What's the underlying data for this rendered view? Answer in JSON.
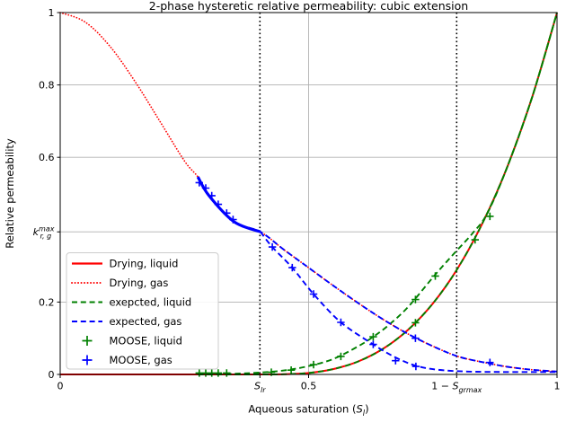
{
  "title": "2-phase hysteretic relative permeability: cubic extension",
  "axes": {
    "ylabel": "Relative permeability",
    "xlabel_plain": "Aqueous saturation (S_l)",
    "xlabel_parts": [
      {
        "t": "Aqueous saturation ("
      },
      {
        "t": "S",
        "i": 1
      },
      {
        "t": "l",
        "i": 1,
        "sub": 1
      },
      {
        "t": ")"
      }
    ],
    "xlim": [
      0,
      1
    ],
    "ylim": [
      0,
      1
    ],
    "xticks": [
      {
        "v": 0,
        "parts": [
          {
            "t": "0"
          }
        ]
      },
      {
        "v": 0.402,
        "parts": [
          {
            "t": "S",
            "i": 1
          },
          {
            "t": "lr",
            "i": 1,
            "sub": 1
          }
        ]
      },
      {
        "v": 0.5,
        "parts": [
          {
            "t": "0.5"
          }
        ]
      },
      {
        "v": 0.798,
        "parts": [
          {
            "t": "1 − "
          },
          {
            "t": "S",
            "i": 1
          },
          {
            "t": "grmax",
            "i": 1,
            "sub": 1
          }
        ]
      },
      {
        "v": 1,
        "parts": [
          {
            "t": "1"
          }
        ]
      }
    ],
    "yticks": [
      {
        "v": 0,
        "parts": [
          {
            "t": "0"
          }
        ]
      },
      {
        "v": 0.2,
        "parts": [
          {
            "t": "0.2"
          }
        ]
      },
      {
        "v": 0.394,
        "parts": [
          {
            "t": "k",
            "i": 1
          },
          {
            "t": "max",
            "i": 1,
            "sup": 1
          },
          {
            "t": "r, g",
            "i": 1,
            "sub": 1,
            "back": -16
          }
        ]
      },
      {
        "v": 0.6,
        "parts": [
          {
            "t": "0.6"
          }
        ]
      },
      {
        "v": 0.8,
        "parts": [
          {
            "t": "0.8"
          }
        ]
      },
      {
        "v": 1,
        "parts": [
          {
            "t": "1"
          }
        ]
      }
    ],
    "grid_x": [
      0.5
    ],
    "grid_y": [
      0.2,
      0.394,
      0.6,
      0.8
    ],
    "dotted_vlines": [
      0.402,
      0.798
    ]
  },
  "legend": {
    "entries": [
      {
        "label": "Drying, liquid",
        "sample": {
          "kind": "line",
          "color": "#ff0000",
          "style": "solid"
        }
      },
      {
        "label": "Drying, gas",
        "sample": {
          "kind": "line",
          "color": "#ff0000",
          "style": "dotted"
        }
      },
      {
        "label": "exepcted, liquid",
        "sample": {
          "kind": "line",
          "color": "#008000",
          "style": "dashed"
        }
      },
      {
        "label": "expected, gas",
        "sample": {
          "kind": "line",
          "color": "#0000ff",
          "style": "dashed"
        }
      },
      {
        "label": "MOOSE, liquid",
        "sample": {
          "kind": "marker",
          "color": "#008000"
        }
      },
      {
        "label": "MOOSE, gas",
        "sample": {
          "kind": "marker",
          "color": "#0000ff"
        }
      }
    ]
  },
  "colors": {
    "drying": "#ff0000",
    "expected_liquid": "#008000",
    "expected_gas": "#0000ff",
    "grid": "#b0b0b0",
    "frame": "#000000",
    "vline": "#000000",
    "background": "#ffffff",
    "legend_border": "#cccccc"
  },
  "chart_data": {
    "type": "line",
    "title": "2-phase hysteretic relative permeability: cubic extension",
    "xlabel": "Aqueous saturation (S_l)",
    "ylabel": "Relative permeability",
    "xlim": [
      0,
      1
    ],
    "ylim": [
      0,
      1
    ],
    "legend_position": "lower left",
    "grid": true,
    "special_values": {
      "S_lr": 0.402,
      "one_minus_S_grmax": 0.798,
      "k_rg_max": 0.394
    },
    "series": [
      {
        "name": "drying-liquid",
        "color": "#ff0000",
        "style": "solid",
        "width": 2.0,
        "points": [
          [
            0,
            0
          ],
          [
            0.15,
            0
          ],
          [
            0.3,
            0
          ],
          [
            0.403,
            0
          ],
          [
            0.45,
            0.0005
          ],
          [
            0.5,
            0.004
          ],
          [
            0.55,
            0.015
          ],
          [
            0.6,
            0.036
          ],
          [
            0.65,
            0.071
          ],
          [
            0.7,
            0.123
          ],
          [
            0.75,
            0.196
          ],
          [
            0.8,
            0.293
          ],
          [
            0.85,
            0.418
          ],
          [
            0.9,
            0.574
          ],
          [
            0.95,
            0.767
          ],
          [
            1,
            1
          ]
        ]
      },
      {
        "name": "drying-gas",
        "color": "#ff0000",
        "style": "dotted",
        "width": 1.7,
        "points": [
          [
            0,
            1
          ],
          [
            0.05,
            0.974
          ],
          [
            0.1,
            0.907
          ],
          [
            0.15,
            0.811
          ],
          [
            0.2,
            0.701
          ],
          [
            0.25,
            0.59
          ],
          [
            0.277,
            0.546
          ],
          [
            0.3,
            0.493
          ],
          [
            0.35,
            0.422
          ],
          [
            0.403,
            0.394
          ],
          [
            0.45,
            0.345
          ],
          [
            0.5,
            0.295
          ],
          [
            0.55,
            0.245
          ],
          [
            0.6,
            0.197
          ],
          [
            0.65,
            0.152
          ],
          [
            0.7,
            0.112
          ],
          [
            0.75,
            0.078
          ],
          [
            0.8,
            0.05
          ],
          [
            0.85,
            0.034
          ],
          [
            0.9,
            0.021
          ],
          [
            0.95,
            0.013
          ],
          [
            1,
            0.008
          ]
        ]
      },
      {
        "name": "expected-liquid-drying-branch",
        "color": "#008000",
        "style": "dashed",
        "width": 1.9,
        "points": [
          [
            0.277,
            0
          ],
          [
            0.34,
            0
          ],
          [
            0.403,
            0
          ],
          [
            0.45,
            0.0005
          ],
          [
            0.5,
            0.004
          ],
          [
            0.55,
            0.015
          ],
          [
            0.6,
            0.036
          ],
          [
            0.65,
            0.071
          ],
          [
            0.7,
            0.123
          ],
          [
            0.75,
            0.196
          ],
          [
            0.8,
            0.293
          ],
          [
            0.85,
            0.418
          ],
          [
            0.9,
            0.574
          ],
          [
            0.95,
            0.767
          ],
          [
            1,
            1
          ]
        ]
      },
      {
        "name": "expected-liquid-wetting-branch",
        "color": "#008000",
        "style": "dashed",
        "width": 1.9,
        "points": [
          [
            0.277,
            0.001
          ],
          [
            0.3,
            0.001
          ],
          [
            0.35,
            0.002
          ],
          [
            0.4,
            0.005
          ],
          [
            0.45,
            0.011
          ],
          [
            0.5,
            0.023
          ],
          [
            0.55,
            0.043
          ],
          [
            0.6,
            0.078
          ],
          [
            0.63,
            0.104
          ],
          [
            0.66,
            0.135
          ],
          [
            0.7,
            0.186
          ],
          [
            0.75,
            0.268
          ],
          [
            0.79,
            0.33
          ],
          [
            0.83,
            0.39
          ],
          [
            0.86,
            0.446
          ],
          [
            0.9,
            0.574
          ],
          [
            0.95,
            0.767
          ],
          [
            1,
            1
          ]
        ]
      },
      {
        "name": "expected-gas-drying-branch",
        "color": "#0000ff",
        "style": "dashed",
        "width": 1.9,
        "points": [
          [
            0.277,
            0.546
          ],
          [
            0.3,
            0.493
          ],
          [
            0.35,
            0.422
          ],
          [
            0.403,
            0.394
          ],
          [
            0.45,
            0.345
          ],
          [
            0.5,
            0.295
          ],
          [
            0.55,
            0.245
          ],
          [
            0.6,
            0.197
          ],
          [
            0.65,
            0.152
          ],
          [
            0.7,
            0.112
          ],
          [
            0.75,
            0.078
          ],
          [
            0.8,
            0.05
          ],
          [
            0.85,
            0.034
          ],
          [
            0.9,
            0.021
          ],
          [
            0.95,
            0.013
          ],
          [
            1,
            0.008
          ]
        ]
      },
      {
        "name": "expected-gas-turning-segment",
        "color": "#0000ff",
        "style": "solid",
        "width": 3.2,
        "points": [
          [
            0.277,
            0.546
          ],
          [
            0.3,
            0.493
          ],
          [
            0.35,
            0.422
          ],
          [
            0.403,
            0.394
          ]
        ]
      },
      {
        "name": "expected-gas-wetting-branch",
        "color": "#0000ff",
        "style": "dashed",
        "width": 1.9,
        "points": [
          [
            0.403,
            0.394
          ],
          [
            0.427,
            0.352
          ],
          [
            0.467,
            0.295
          ],
          [
            0.51,
            0.222
          ],
          [
            0.565,
            0.144
          ],
          [
            0.63,
            0.083
          ],
          [
            0.675,
            0.047
          ],
          [
            0.716,
            0.024
          ],
          [
            0.76,
            0.013
          ],
          [
            0.82,
            0.008
          ],
          [
            0.9,
            0.0067
          ],
          [
            1,
            0.0067
          ]
        ]
      }
    ],
    "markers": [
      {
        "name": "moose-liquid",
        "color": "#008000",
        "points": [
          [
            0.28,
            0.004
          ],
          [
            0.293,
            0.004
          ],
          [
            0.305,
            0.004
          ],
          [
            0.318,
            0.004
          ],
          [
            0.335,
            0.004
          ],
          [
            0.425,
            0.006
          ],
          [
            0.465,
            0.012
          ],
          [
            0.51,
            0.027
          ],
          [
            0.565,
            0.05
          ],
          [
            0.63,
            0.104
          ],
          [
            0.715,
            0.207
          ],
          [
            0.755,
            0.272
          ],
          [
            0.835,
            0.372
          ],
          [
            0.865,
            0.437
          ],
          [
            0.715,
            0.143
          ]
        ]
      },
      {
        "name": "moose-gas",
        "color": "#0000ff",
        "points": [
          [
            0.28,
            0.53
          ],
          [
            0.293,
            0.515
          ],
          [
            0.305,
            0.494
          ],
          [
            0.318,
            0.47
          ],
          [
            0.335,
            0.446
          ],
          [
            0.348,
            0.428
          ],
          [
            0.427,
            0.352
          ],
          [
            0.467,
            0.295
          ],
          [
            0.51,
            0.222
          ],
          [
            0.565,
            0.144
          ],
          [
            0.63,
            0.083
          ],
          [
            0.675,
            0.038
          ],
          [
            0.716,
            0.022
          ],
          [
            0.715,
            0.1
          ],
          [
            0.865,
            0.033
          ]
        ]
      }
    ]
  }
}
